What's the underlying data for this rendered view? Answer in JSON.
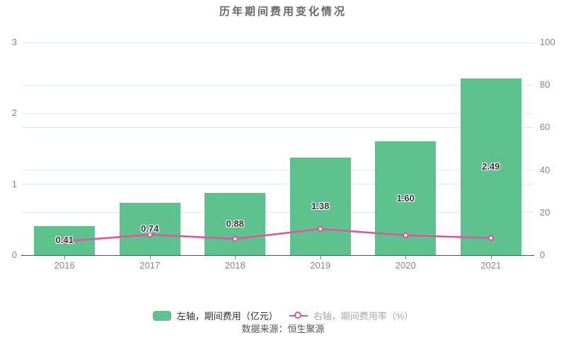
{
  "chart_data": {
    "type": "combo",
    "title": "历年期间费用变化情况",
    "categories": [
      "2016",
      "2017",
      "2018",
      "2019",
      "2020",
      "2021"
    ],
    "series": [
      {
        "name": "左轴，期间费用（亿元）",
        "type": "bar",
        "axis": "left",
        "color": "#5ec28f",
        "values": [
          0.41,
          0.74,
          0.88,
          1.38,
          1.6,
          2.49
        ],
        "labels": [
          "0.41",
          "0.74",
          "0.88",
          "1.38",
          "1.60",
          "2.49"
        ]
      },
      {
        "name": "右轴，期间费用率（%）",
        "type": "line",
        "axis": "right",
        "color": "#e0569d",
        "values": [
          6.5,
          9.6,
          7.6,
          12.3,
          9.3,
          8.0
        ],
        "values_note": "no data labels shown on line; values estimated from pixel positions"
      }
    ],
    "left_axis": {
      "min": 0,
      "max": 3,
      "ticks": [
        0,
        1,
        2,
        3
      ]
    },
    "right_axis": {
      "min": 0,
      "max": 100,
      "ticks": [
        0,
        20,
        40,
        60,
        80,
        100
      ]
    },
    "grid": true,
    "legend_position": "bottom"
  },
  "legend": {
    "items": [
      {
        "label": "左轴，期间费用（亿元）",
        "icon": "bar-swatch",
        "color": "#5ec28f",
        "label_color": "#333333"
      },
      {
        "label": "右轴，期间费用率（%）",
        "icon": "line-marker-swatch",
        "color": "#e0569d",
        "label_color": "#aaaaaa"
      }
    ]
  },
  "footer": {
    "text": "数据来源：恒生聚源"
  },
  "colors": {
    "background": "#ffffff",
    "bar": "#5ec28f",
    "line": "#e0569d",
    "grid": "#e3eaf4",
    "axis_line": "#4e545b",
    "axis_tick": "#7f8893",
    "axis_label": "#898989",
    "title": "#686868",
    "bar_label": "#333333",
    "footer": "#555555"
  }
}
